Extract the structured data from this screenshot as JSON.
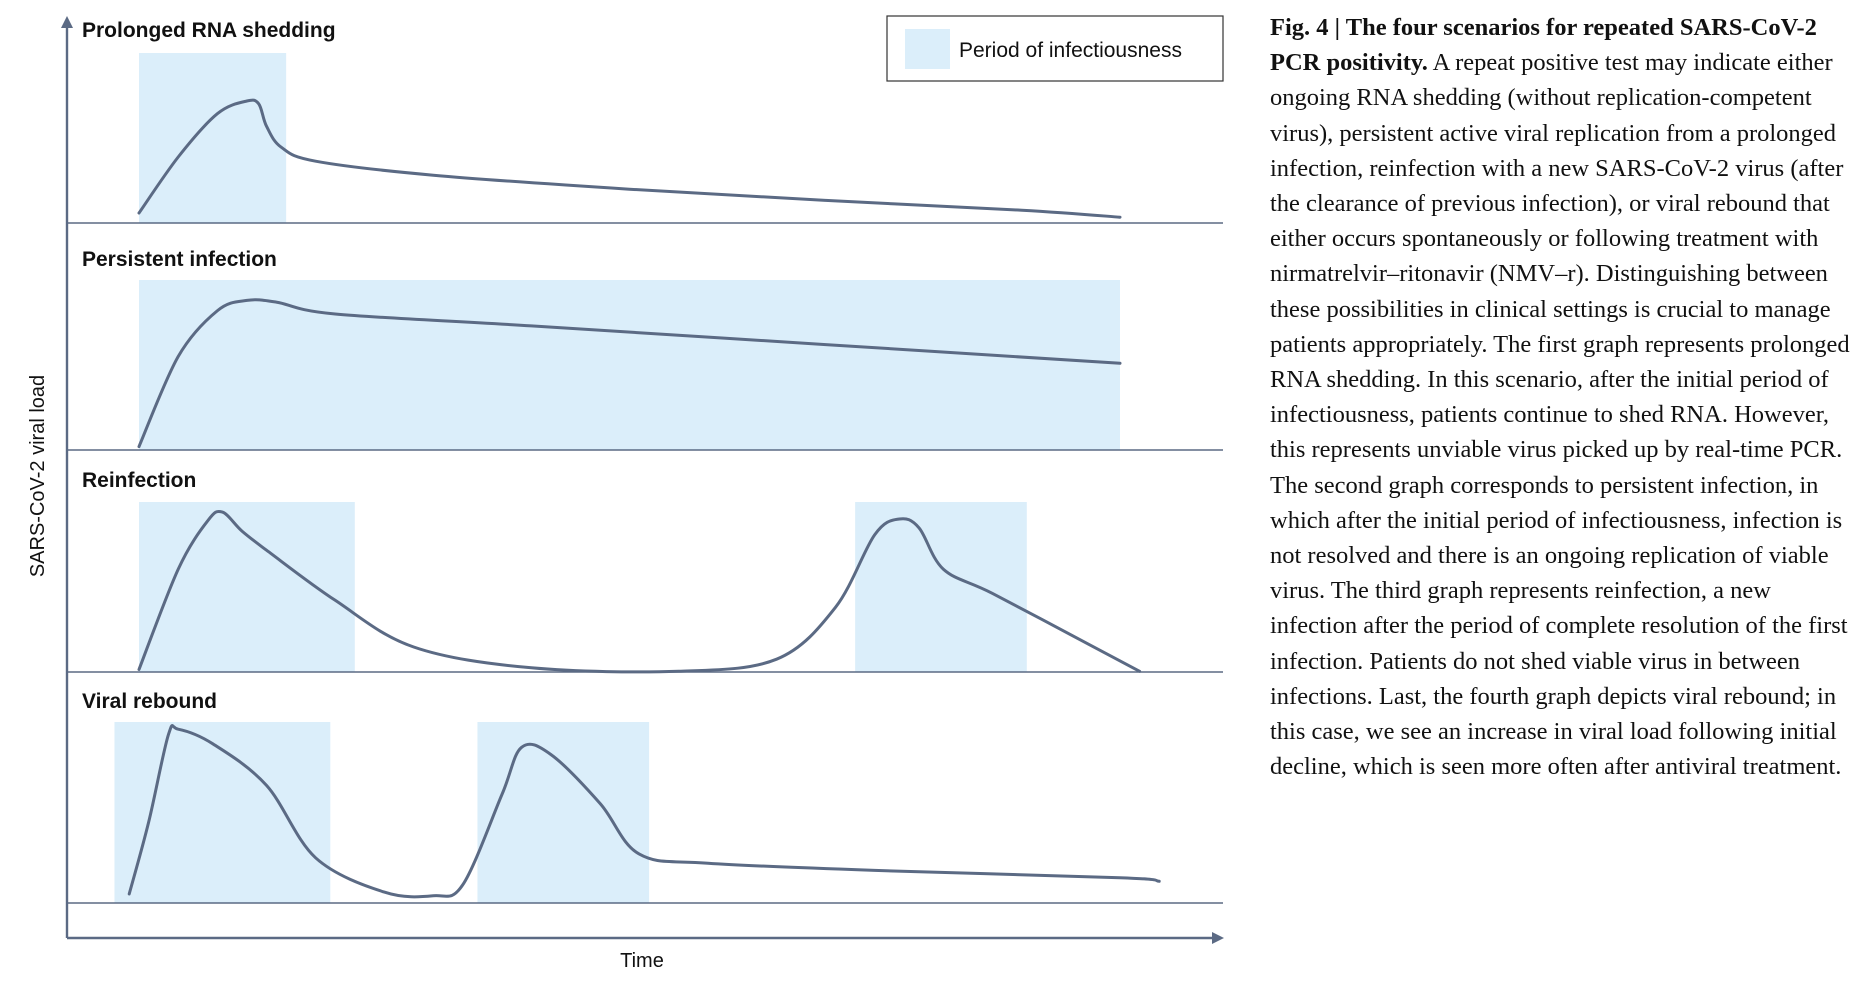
{
  "chart_data": {
    "type": "line",
    "ylabel": "SARS-CoV-2 viral load",
    "xlabel": "Time",
    "legend": {
      "label": "Period of infectiousness",
      "color": "#dbeefa",
      "placement": "top-right"
    },
    "line_color": "#5b6a84",
    "x_range": [
      0,
      100
    ],
    "y_range": [
      0,
      100
    ],
    "panels": [
      {
        "title": "Prolonged RNA shedding",
        "infectious_periods": [
          [
            0,
            15
          ]
        ],
        "series": [
          {
            "x": 0,
            "y": 5
          },
          {
            "x": 4,
            "y": 45
          },
          {
            "x": 8,
            "y": 76
          },
          {
            "x": 11,
            "y": 85
          },
          {
            "x": 12.2,
            "y": 83
          },
          {
            "x": 13,
            "y": 67
          },
          {
            "x": 14.5,
            "y": 52
          },
          {
            "x": 18,
            "y": 42
          },
          {
            "x": 30,
            "y": 32
          },
          {
            "x": 50,
            "y": 22
          },
          {
            "x": 70,
            "y": 14
          },
          {
            "x": 90,
            "y": 7
          },
          {
            "x": 100,
            "y": 2
          }
        ]
      },
      {
        "title": "Persistent infection",
        "infectious_periods": [
          [
            0,
            100
          ]
        ],
        "series": [
          {
            "x": 0,
            "y": 2
          },
          {
            "x": 4,
            "y": 55
          },
          {
            "x": 8,
            "y": 82
          },
          {
            "x": 11,
            "y": 88
          },
          {
            "x": 14,
            "y": 87
          },
          {
            "x": 20,
            "y": 80
          },
          {
            "x": 40,
            "y": 73
          },
          {
            "x": 70,
            "y": 62
          },
          {
            "x": 100,
            "y": 51
          }
        ]
      },
      {
        "title": "Reinfection",
        "infectious_periods": [
          [
            0,
            22
          ],
          [
            73,
            90.5
          ]
        ],
        "series": [
          {
            "x": 0,
            "y": 2
          },
          {
            "x": 4,
            "y": 60
          },
          {
            "x": 7,
            "y": 88
          },
          {
            "x": 8.5,
            "y": 93
          },
          {
            "x": 10.5,
            "y": 82
          },
          {
            "x": 13,
            "y": 71
          },
          {
            "x": 20,
            "y": 42
          },
          {
            "x": 28,
            "y": 15
          },
          {
            "x": 40,
            "y": 3
          },
          {
            "x": 55,
            "y": 1
          },
          {
            "x": 65,
            "y": 8
          },
          {
            "x": 71,
            "y": 38
          },
          {
            "x": 75,
            "y": 80
          },
          {
            "x": 77.5,
            "y": 89
          },
          {
            "x": 79.5,
            "y": 84
          },
          {
            "x": 82,
            "y": 60
          },
          {
            "x": 87,
            "y": 46
          },
          {
            "x": 97,
            "y": 16
          },
          {
            "x": 102,
            "y": 1
          }
        ]
      },
      {
        "title": "Viral rebound",
        "infectious_periods": [
          [
            -2.5,
            19.5
          ],
          [
            34.5,
            52
          ]
        ],
        "series": [
          {
            "x": -1,
            "y": 5
          },
          {
            "x": 1,
            "y": 45
          },
          {
            "x": 3,
            "y": 93
          },
          {
            "x": 4,
            "y": 96
          },
          {
            "x": 7.5,
            "y": 88
          },
          {
            "x": 13,
            "y": 65
          },
          {
            "x": 18,
            "y": 25
          },
          {
            "x": 25,
            "y": 6
          },
          {
            "x": 30,
            "y": 4
          },
          {
            "x": 33,
            "y": 10
          },
          {
            "x": 37,
            "y": 60
          },
          {
            "x": 39,
            "y": 86
          },
          {
            "x": 42,
            "y": 82
          },
          {
            "x": 47,
            "y": 55
          },
          {
            "x": 51,
            "y": 27
          },
          {
            "x": 58,
            "y": 22
          },
          {
            "x": 75,
            "y": 18
          },
          {
            "x": 100,
            "y": 14
          },
          {
            "x": 104,
            "y": 12
          }
        ]
      }
    ]
  },
  "caption": {
    "title": "Fig. 4 | The four scenarios for repeated SARS-CoV-2 PCR positivity.",
    "body": " A repeat positive test may indicate either ongoing RNA shedding (without replication-competent virus), persistent active viral replication from a prolonged infection, reinfection with a new SARS-CoV-2 virus (after the clearance of previous infection), or viral rebound that either occurs spontaneously or following treatment with nirmatrelvir–ritonavir (NMV–r). Distinguishing between these possibilities in clinical settings is crucial to manage patients appropriately. The first graph represents prolonged RNA shedding. In this scenario, after the initial period of infectiousness, patients continue to shed RNA. However, this represents unviable virus picked up by real-time PCR. The second graph corresponds to persistent infection, in which after the initial period of infectiousness, infection is not resolved and there is an ongoing replication of viable virus. The third graph represents reinfection, a new infection after the period of complete resolution of the first infection. Patients do not shed viable virus in between infections. Last, the fourth graph depicts viral rebound; in this case, we see an increase in viral load following initial decline, which is seen more often after antiviral treatment."
  }
}
